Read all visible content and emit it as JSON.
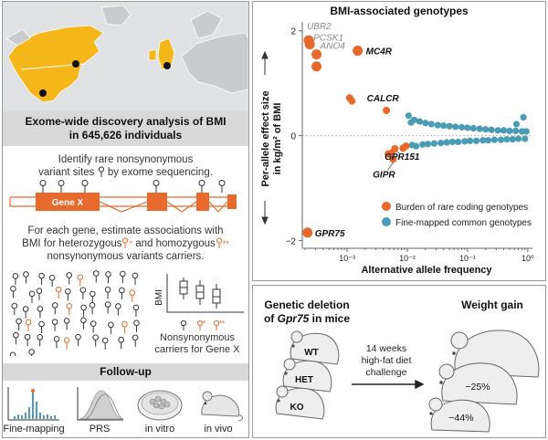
{
  "discovery": {
    "title_line1": "Exome-wide discovery analysis of BMI",
    "title_line2": "in 645,626 individuals",
    "step1_line1": "Identify rare nonsynonymous",
    "step1_line2": "variant sites",
    "step1_line2b": "by exome sequencing.",
    "gene_label": "Gene X",
    "step2_line1": "For each gene, estimate associations with",
    "step2_line2a": "BMI for heterozygous",
    "step2_line2b": "and homozygous",
    "step2_line3": "nonsynonymous variants carriers.",
    "boxplot_ylabel": "BMI",
    "carriers_line1": "Nonsynonymous",
    "carriers_line2": "carriers for Gene X",
    "het_mark": "*",
    "hom_mark": "**"
  },
  "followup": {
    "title": "Follow-up",
    "items": [
      {
        "label": "Fine-mapping",
        "icon": "manhattan-plot-icon"
      },
      {
        "label": "PRS",
        "icon": "distribution-curve-icon"
      },
      {
        "label": "in vitro",
        "icon": "petri-dish-icon"
      },
      {
        "label": "in vivo",
        "icon": "mouse-icon"
      }
    ]
  },
  "chart_data": {
    "type": "scatter",
    "title": "BMI-associated genotypes",
    "xlabel": "Alternative allele frequency",
    "ylabel_line1": "Per-allele effect size",
    "ylabel_line2": "in kg/m² of BMI",
    "x_scale": "log",
    "xlim": [
      0.00018,
      1.2
    ],
    "ylim": [
      -2.15,
      2.1
    ],
    "x_ticks": [
      0.001,
      0.01,
      0.1,
      1
    ],
    "x_tick_labels": [
      "10⁻³",
      "10⁻²",
      "10⁻¹",
      "10⁰"
    ],
    "y_ticks": [
      -2,
      0,
      2
    ],
    "y_tick_labels": [
      "−2",
      "0",
      "2"
    ],
    "legend_placement": "bottom-right",
    "series": [
      {
        "name": "Burden of rare coding genotypes",
        "color": "#e8692c",
        "points": [
          {
            "x": 0.00023,
            "y": 1.82
          },
          {
            "x": 0.00024,
            "y": 1.74
          },
          {
            "x": 0.00031,
            "y": 1.55
          },
          {
            "x": 0.00031,
            "y": 1.32
          },
          {
            "x": 0.0015,
            "y": 1.62
          },
          {
            "x": 0.0011,
            "y": 0.72
          },
          {
            "x": 0.0012,
            "y": 0.66
          },
          {
            "x": 0.0045,
            "y": 0.48
          },
          {
            "x": 0.0048,
            "y": -0.35
          },
          {
            "x": 0.0055,
            "y": -0.33
          },
          {
            "x": 0.0062,
            "y": -0.25
          },
          {
            "x": 0.0085,
            "y": -0.24
          },
          {
            "x": 0.0095,
            "y": -0.2
          },
          {
            "x": 0.0058,
            "y": -0.45
          },
          {
            "x": 0.00022,
            "y": -1.85
          }
        ],
        "annotations": [
          {
            "text": "UBR2",
            "x": 0.00023,
            "y": 1.82,
            "style": "italic-gray"
          },
          {
            "text": "PCSK1",
            "x": 0.00024,
            "y": 1.74,
            "style": "italic-gray"
          },
          {
            "text": "ANO4",
            "x": 0.00031,
            "y": 1.55,
            "style": "italic-gray"
          },
          {
            "text": "MC4R",
            "x": 0.0015,
            "y": 1.62,
            "style": "bold"
          },
          {
            "text": "CALCR",
            "x": 0.0045,
            "y": 0.48,
            "style": "bold"
          },
          {
            "text": "GPR151",
            "x": 0.0062,
            "y": -0.25,
            "style": "bold"
          },
          {
            "text": "GIPR",
            "x": 0.0058,
            "y": -0.45,
            "style": "bold"
          },
          {
            "text": "GPR75",
            "x": 0.00022,
            "y": -1.85,
            "style": "bold"
          }
        ]
      },
      {
        "name": "Fine-mapped common genotypes",
        "color": "#4a9bb5",
        "points": [
          {
            "x": 0.0105,
            "y": 0.38
          },
          {
            "x": 0.0115,
            "y": 0.25
          },
          {
            "x": 0.012,
            "y": -0.18
          },
          {
            "x": 0.013,
            "y": 0.3
          },
          {
            "x": 0.014,
            "y": -0.2
          },
          {
            "x": 0.016,
            "y": 0.27
          },
          {
            "x": 0.018,
            "y": -0.17
          },
          {
            "x": 0.02,
            "y": 0.24
          },
          {
            "x": 0.022,
            "y": -0.16
          },
          {
            "x": 0.025,
            "y": 0.22
          },
          {
            "x": 0.028,
            "y": -0.15
          },
          {
            "x": 0.032,
            "y": 0.2
          },
          {
            "x": 0.036,
            "y": -0.14
          },
          {
            "x": 0.04,
            "y": 0.19
          },
          {
            "x": 0.045,
            "y": -0.13
          },
          {
            "x": 0.05,
            "y": 0.18
          },
          {
            "x": 0.056,
            "y": -0.12
          },
          {
            "x": 0.063,
            "y": 0.17
          },
          {
            "x": 0.07,
            "y": -0.12
          },
          {
            "x": 0.08,
            "y": 0.16
          },
          {
            "x": 0.09,
            "y": -0.11
          },
          {
            "x": 0.1,
            "y": 0.15
          },
          {
            "x": 0.11,
            "y": -0.1
          },
          {
            "x": 0.125,
            "y": 0.14
          },
          {
            "x": 0.14,
            "y": -0.1
          },
          {
            "x": 0.16,
            "y": 0.13
          },
          {
            "x": 0.18,
            "y": -0.09
          },
          {
            "x": 0.2,
            "y": 0.12
          },
          {
            "x": 0.22,
            "y": -0.09
          },
          {
            "x": 0.25,
            "y": 0.11
          },
          {
            "x": 0.28,
            "y": -0.08
          },
          {
            "x": 0.32,
            "y": 0.1
          },
          {
            "x": 0.36,
            "y": -0.08
          },
          {
            "x": 0.4,
            "y": 0.1
          },
          {
            "x": 0.45,
            "y": -0.07
          },
          {
            "x": 0.5,
            "y": 0.09
          },
          {
            "x": 0.56,
            "y": -0.07
          },
          {
            "x": 0.63,
            "y": 0.09
          },
          {
            "x": 0.7,
            "y": -0.06
          },
          {
            "x": 0.8,
            "y": 0.08
          },
          {
            "x": 0.9,
            "y": -0.06
          },
          {
            "x": 0.95,
            "y": 0.08
          },
          {
            "x": 0.65,
            "y": 0.22
          },
          {
            "x": 0.85,
            "y": 0.35
          }
        ]
      }
    ]
  },
  "mice": {
    "title_line1": "Genetic deletion",
    "title_line2_prefix": "of ",
    "title_line2_gene": "Gpr75",
    "title_line2_suffix": " in mice",
    "genotypes": [
      "WT",
      "HET",
      "KO"
    ],
    "diet_line1": "14 weeks",
    "diet_line2": "high-fat diet",
    "diet_line3": "challenge",
    "weight_title": "Weight gain",
    "weight_changes": [
      "−25%",
      "−44%"
    ]
  },
  "colors": {
    "orange": "#e8692c",
    "teal": "#4a9bb5",
    "map_yellow": "#f4b619",
    "banner_gray": "#d9d9d9"
  }
}
